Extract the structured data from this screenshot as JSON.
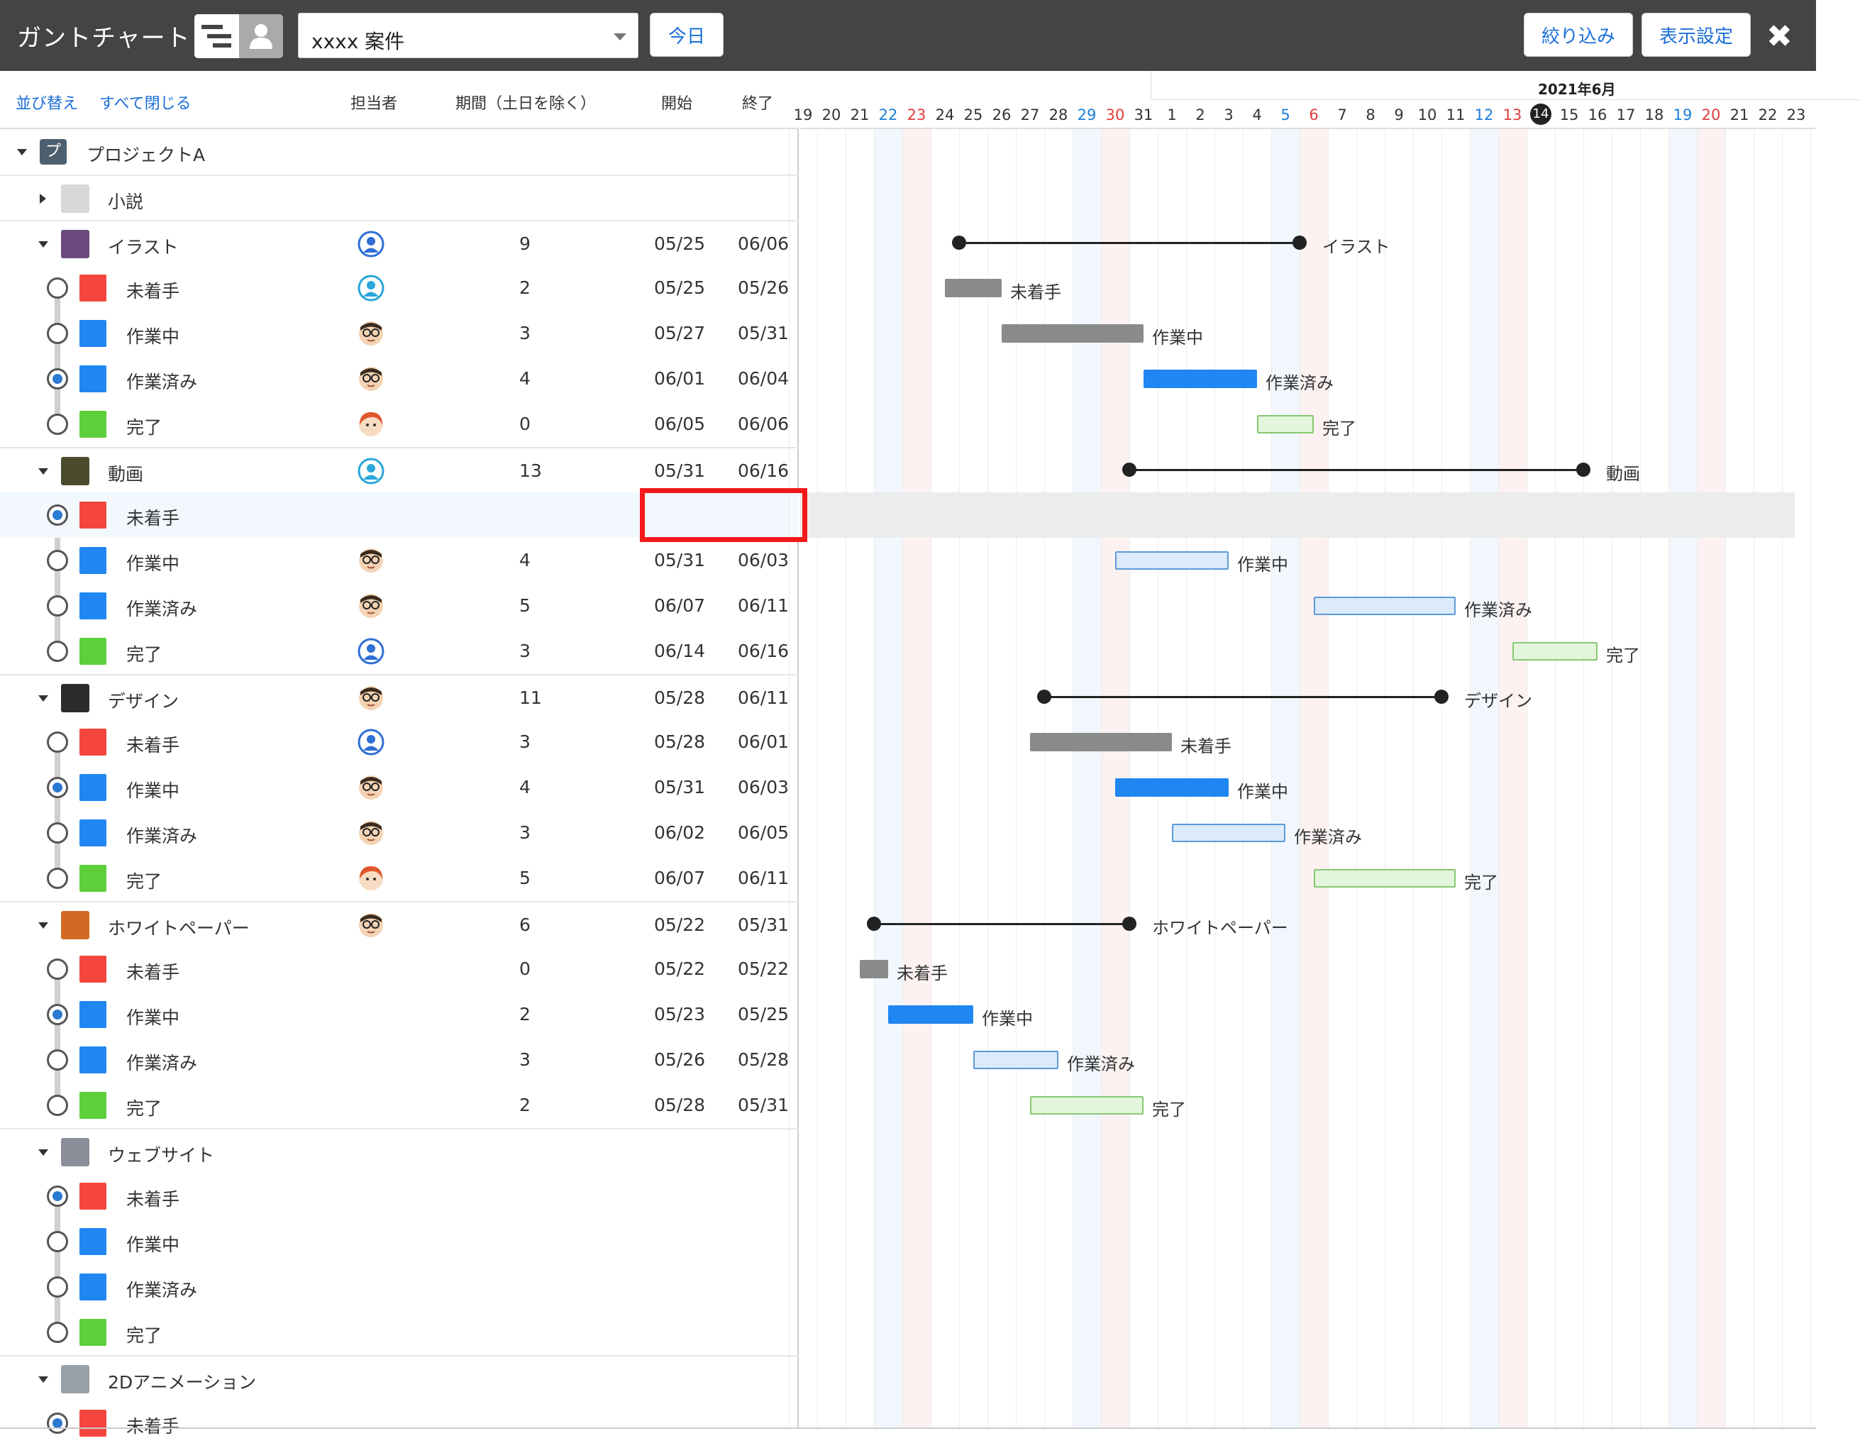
{
  "topbar": {
    "title": "ガントチャート",
    "project_select": "xxxx 案件",
    "today_button": "今日",
    "filter_button": "絞り込み",
    "display_settings_button": "表示設定",
    "close_label": "✖"
  },
  "list_header": {
    "sort_link": "並び替え",
    "collapse_all_link": "すべて閉じる",
    "col_assignee": "担当者",
    "col_duration": "期間（土日を除く）",
    "col_start": "開始",
    "col_end": "終了"
  },
  "timeline": {
    "month_label": "2021年6月",
    "days": [
      {
        "d": "19",
        "t": ""
      },
      {
        "d": "20",
        "t": ""
      },
      {
        "d": "21",
        "t": ""
      },
      {
        "d": "22",
        "t": "sat"
      },
      {
        "d": "23",
        "t": "sun"
      },
      {
        "d": "24",
        "t": ""
      },
      {
        "d": "25",
        "t": ""
      },
      {
        "d": "26",
        "t": ""
      },
      {
        "d": "27",
        "t": ""
      },
      {
        "d": "28",
        "t": ""
      },
      {
        "d": "29",
        "t": "sat"
      },
      {
        "d": "30",
        "t": "sun"
      },
      {
        "d": "31",
        "t": ""
      },
      {
        "d": "1",
        "t": ""
      },
      {
        "d": "2",
        "t": ""
      },
      {
        "d": "3",
        "t": ""
      },
      {
        "d": "4",
        "t": ""
      },
      {
        "d": "5",
        "t": "sat"
      },
      {
        "d": "6",
        "t": "sun"
      },
      {
        "d": "7",
        "t": ""
      },
      {
        "d": "8",
        "t": ""
      },
      {
        "d": "9",
        "t": ""
      },
      {
        "d": "10",
        "t": ""
      },
      {
        "d": "11",
        "t": ""
      },
      {
        "d": "12",
        "t": "sat"
      },
      {
        "d": "13",
        "t": "sun"
      },
      {
        "d": "14",
        "t": "today"
      },
      {
        "d": "15",
        "t": ""
      },
      {
        "d": "16",
        "t": ""
      },
      {
        "d": "17",
        "t": ""
      },
      {
        "d": "18",
        "t": ""
      },
      {
        "d": "19",
        "t": "sat"
      },
      {
        "d": "20",
        "t": "sun"
      },
      {
        "d": "21",
        "t": ""
      },
      {
        "d": "22",
        "t": ""
      },
      {
        "d": "23",
        "t": ""
      }
    ]
  },
  "project": {
    "badge": "プ",
    "name": "プロジェクトA"
  },
  "rows": [
    {
      "kind": "group",
      "name": "小説",
      "collapsed": true,
      "thumb": "#d8d8d8"
    },
    {
      "kind": "group",
      "name": "イラスト",
      "thumb": "#6b4a7d",
      "assignee": "user-blue",
      "duration": "9",
      "start": "05/25",
      "end": "06/06",
      "bar": {
        "type": "summary",
        "s": 6,
        "e": 18
      }
    },
    {
      "kind": "task",
      "name": "未着手",
      "color": "#f4463e",
      "radio": false,
      "assignee": "user-teal",
      "duration": "2",
      "start": "05/25",
      "end": "05/26",
      "bar": {
        "type": "gray",
        "s": 5.5,
        "e": 7.5
      }
    },
    {
      "kind": "task",
      "name": "作業中",
      "color": "#1f86f2",
      "radio": false,
      "assignee": "man-glasses",
      "duration": "3",
      "start": "05/27",
      "end": "05/31",
      "bar": {
        "type": "gray",
        "s": 7.5,
        "e": 12.5
      }
    },
    {
      "kind": "task",
      "name": "作業済み",
      "color": "#1f86f2",
      "radio": true,
      "assignee": "man-glasses",
      "duration": "4",
      "start": "06/01",
      "end": "06/04",
      "bar": {
        "type": "blue",
        "s": 12.5,
        "e": 16.5
      }
    },
    {
      "kind": "task",
      "name": "完了",
      "color": "#5ccf3a",
      "radio": false,
      "assignee": "woman-red",
      "duration": "0",
      "start": "06/05",
      "end": "06/06",
      "bar": {
        "type": "lgreen",
        "s": 16.5,
        "e": 18.5
      }
    },
    {
      "kind": "group",
      "name": "動画",
      "thumb": "#4c4a2d",
      "assignee": "user-teal",
      "duration": "13",
      "start": "05/31",
      "end": "06/16",
      "bar": {
        "type": "summary",
        "s": 12,
        "e": 28
      }
    },
    {
      "kind": "task",
      "name": "未着手",
      "color": "#f4463e",
      "radio": true,
      "highlight": true,
      "duration": "",
      "start": "",
      "end": ""
    },
    {
      "kind": "task",
      "name": "作業中",
      "color": "#1f86f2",
      "radio": false,
      "assignee": "man-glasses",
      "duration": "4",
      "start": "05/31",
      "end": "06/03",
      "bar": {
        "type": "lblue",
        "s": 11.5,
        "e": 15.5
      }
    },
    {
      "kind": "task",
      "name": "作業済み",
      "color": "#1f86f2",
      "radio": false,
      "assignee": "man-glasses",
      "duration": "5",
      "start": "06/07",
      "end": "06/11",
      "bar": {
        "type": "lblue",
        "s": 18.5,
        "e": 23.5
      }
    },
    {
      "kind": "task",
      "name": "完了",
      "color": "#5ccf3a",
      "radio": false,
      "assignee": "user-blue",
      "duration": "3",
      "start": "06/14",
      "end": "06/16",
      "bar": {
        "type": "lgreen",
        "s": 25.5,
        "e": 28.5
      }
    },
    {
      "kind": "group",
      "name": "デザイン",
      "thumb": "#2b2b2b",
      "assignee": "man-glasses",
      "duration": "11",
      "start": "05/28",
      "end": "06/11",
      "bar": {
        "type": "summary",
        "s": 9,
        "e": 23
      }
    },
    {
      "kind": "task",
      "name": "未着手",
      "color": "#f4463e",
      "radio": false,
      "assignee": "user-blue",
      "duration": "3",
      "start": "05/28",
      "end": "06/01",
      "bar": {
        "type": "gray",
        "s": 8.5,
        "e": 13.5
      }
    },
    {
      "kind": "task",
      "name": "作業中",
      "color": "#1f86f2",
      "radio": true,
      "assignee": "man-glasses",
      "duration": "4",
      "start": "05/31",
      "end": "06/03",
      "bar": {
        "type": "blue",
        "s": 11.5,
        "e": 15.5
      }
    },
    {
      "kind": "task",
      "name": "作業済み",
      "color": "#1f86f2",
      "radio": false,
      "assignee": "man-glasses",
      "duration": "3",
      "start": "06/02",
      "end": "06/05",
      "bar": {
        "type": "lblue",
        "s": 13.5,
        "e": 17.5
      }
    },
    {
      "kind": "task",
      "name": "完了",
      "color": "#5ccf3a",
      "radio": false,
      "assignee": "woman-red",
      "duration": "5",
      "start": "06/07",
      "end": "06/11",
      "bar": {
        "type": "lgreen",
        "s": 18.5,
        "e": 23.5
      }
    },
    {
      "kind": "group",
      "name": "ホワイトペーパー",
      "thumb": "#d36a24",
      "assignee": "man-glasses",
      "duration": "6",
      "start": "05/22",
      "end": "05/31",
      "bar": {
        "type": "summary",
        "s": 3,
        "e": 12
      }
    },
    {
      "kind": "task",
      "name": "未着手",
      "color": "#f4463e",
      "radio": false,
      "duration": "0",
      "start": "05/22",
      "end": "05/22",
      "bar": {
        "type": "gray",
        "s": 2.5,
        "e": 3.5
      }
    },
    {
      "kind": "task",
      "name": "作業中",
      "color": "#1f86f2",
      "radio": true,
      "duration": "2",
      "start": "05/23",
      "end": "05/25",
      "bar": {
        "type": "blue",
        "s": 3.5,
        "e": 6.5
      }
    },
    {
      "kind": "task",
      "name": "作業済み",
      "color": "#1f86f2",
      "radio": false,
      "duration": "3",
      "start": "05/26",
      "end": "05/28",
      "bar": {
        "type": "lblue",
        "s": 6.5,
        "e": 9.5
      }
    },
    {
      "kind": "task",
      "name": "完了",
      "color": "#5ccf3a",
      "radio": false,
      "duration": "2",
      "start": "05/28",
      "end": "05/31",
      "bar": {
        "type": "lgreen",
        "s": 8.5,
        "e": 12.5
      }
    },
    {
      "kind": "group",
      "name": "ウェブサイト",
      "thumb": "#8a8f9a",
      "duration": "",
      "start": "",
      "end": ""
    },
    {
      "kind": "task",
      "name": "未着手",
      "color": "#f4463e",
      "radio": true,
      "duration": "",
      "start": "",
      "end": ""
    },
    {
      "kind": "task",
      "name": "作業中",
      "color": "#1f86f2",
      "radio": false,
      "duration": "",
      "start": "",
      "end": ""
    },
    {
      "kind": "task",
      "name": "作業済み",
      "color": "#1f86f2",
      "radio": false,
      "duration": "",
      "start": "",
      "end": ""
    },
    {
      "kind": "task",
      "name": "完了",
      "color": "#5ccf3a",
      "radio": false,
      "duration": "",
      "start": "",
      "end": ""
    },
    {
      "kind": "group",
      "name": "2Dアニメーション",
      "thumb": "#9aa0a8",
      "duration": "",
      "start": "",
      "end": ""
    },
    {
      "kind": "task",
      "name": "未着手",
      "color": "#f4463e",
      "radio": true,
      "duration": "",
      "start": "",
      "end": ""
    }
  ]
}
